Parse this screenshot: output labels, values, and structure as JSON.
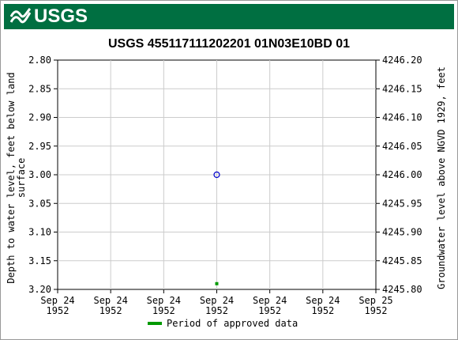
{
  "header": {
    "logo_text": "USGS"
  },
  "chart_data": {
    "type": "scatter",
    "title": "USGS 455117111202201 01N03E10BD  01",
    "ylabel_left_line1": "Depth to water level, feet below land",
    "ylabel_left_line2": "surface",
    "ylabel_right": "Groundwater level above NGVD 1929, feet",
    "y_left_range": [
      2.8,
      3.2
    ],
    "y_left_ticks": [
      "2.80",
      "2.85",
      "2.90",
      "2.95",
      "3.00",
      "3.05",
      "3.10",
      "3.15",
      "3.20"
    ],
    "y_right_ticks": [
      "4246.20",
      "4246.15",
      "4246.10",
      "4246.05",
      "4246.00",
      "4245.95",
      "4245.90",
      "4245.85",
      "4245.80"
    ],
    "x_ticks": [
      {
        "line1": "Sep 24",
        "line2": "1952"
      },
      {
        "line1": "Sep 24",
        "line2": "1952"
      },
      {
        "line1": "Sep 24",
        "line2": "1952"
      },
      {
        "line1": "Sep 24",
        "line2": "1952"
      },
      {
        "line1": "Sep 24",
        "line2": "1952"
      },
      {
        "line1": "Sep 24",
        "line2": "1952"
      },
      {
        "line1": "Sep 25",
        "line2": "1952"
      }
    ],
    "grid": true,
    "series": [
      {
        "marker": "circle",
        "color": "#0000cc",
        "points": [
          {
            "x_fraction": 0.5,
            "y": 3.0
          }
        ]
      },
      {
        "marker": "square",
        "color": "#009900",
        "points": [
          {
            "x_fraction": 0.5,
            "y": 3.19
          }
        ]
      }
    ],
    "legend": {
      "placement": "bottom-center",
      "label": "Period of approved data",
      "color": "#009900"
    }
  }
}
